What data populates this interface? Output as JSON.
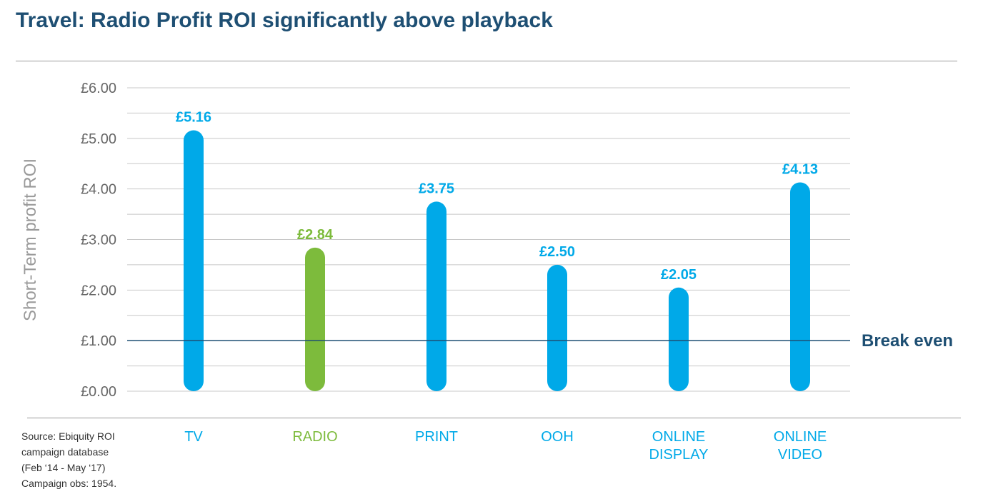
{
  "title": "Travel: Radio Profit ROI significantly above playback",
  "colors": {
    "blue": "#00a9e8",
    "green": "#7dbb3c",
    "title": "#1e4f73",
    "break_even": "#1e4f73"
  },
  "chart_data": {
    "type": "bar",
    "title": "Travel: Radio Profit ROI significantly above playback",
    "ylabel": "Short-Term profit ROI",
    "xlabel": "",
    "ylim": [
      0,
      6
    ],
    "yticks": [
      {
        "value": 0,
        "label": "£0.00"
      },
      {
        "value": 1,
        "label": "£1.00"
      },
      {
        "value": 2,
        "label": "£2.00"
      },
      {
        "value": 3,
        "label": "£3.00"
      },
      {
        "value": 4,
        "label": "£4.00"
      },
      {
        "value": 5,
        "label": "£5.00"
      },
      {
        "value": 6,
        "label": "£6.00"
      }
    ],
    "grid": true,
    "bars": [
      {
        "category": [
          "TV"
        ],
        "value": 5.16,
        "label": "£5.16",
        "color": "#00a9e8"
      },
      {
        "category": [
          "RADIO"
        ],
        "value": 2.84,
        "label": "£2.84",
        "color": "#7dbb3c"
      },
      {
        "category": [
          "PRINT"
        ],
        "value": 3.75,
        "label": "£3.75",
        "color": "#00a9e8"
      },
      {
        "category": [
          "OOH"
        ],
        "value": 2.5,
        "label": "£2.50",
        "color": "#00a9e8"
      },
      {
        "category": [
          "ONLINE",
          "DISPLAY"
        ],
        "value": 2.05,
        "label": "£2.05",
        "color": "#00a9e8"
      },
      {
        "category": [
          "ONLINE",
          "VIDEO"
        ],
        "value": 4.13,
        "label": "£4.13",
        "color": "#00a9e8"
      }
    ],
    "reference_line": {
      "value": 1,
      "label": "Break even"
    }
  },
  "source_lines": [
    "Source: Ebiquity ROI",
    "campaign database",
    "(Feb ‘14 - May ‘17)",
    "Campaign obs: 1954."
  ]
}
